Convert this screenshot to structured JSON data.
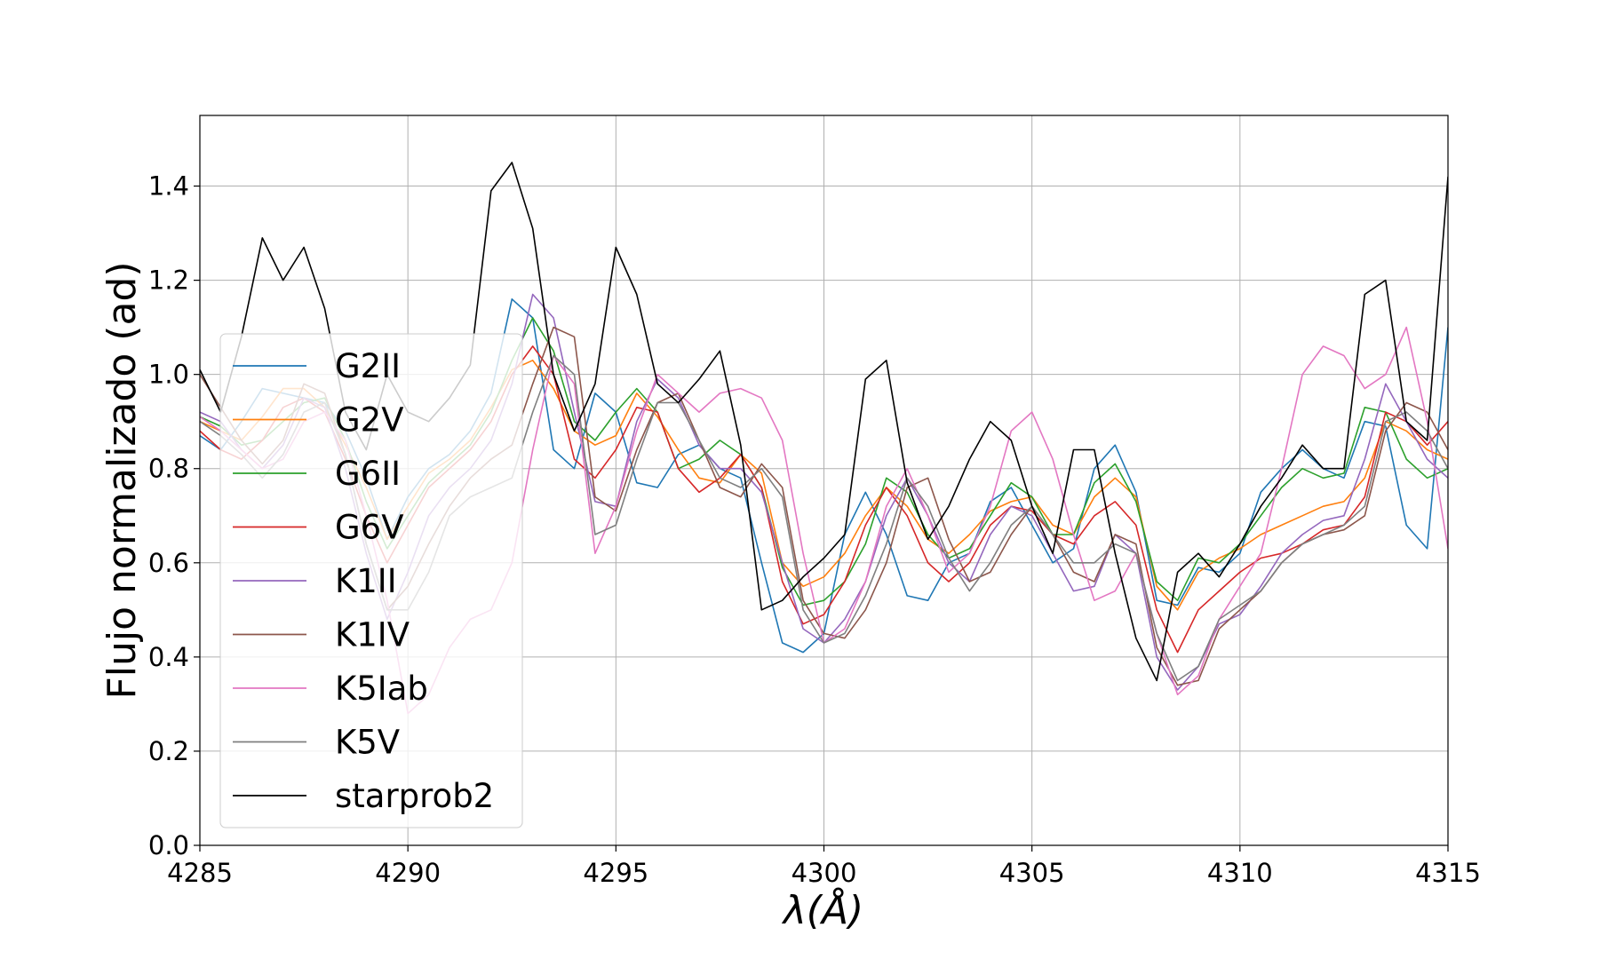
{
  "chart_data": {
    "type": "line",
    "title": "",
    "xlabel": "λ(Å)",
    "ylabel": "Flujo normalizado (ad)",
    "xlim": [
      4285,
      4315
    ],
    "ylim": [
      0.0,
      1.55
    ],
    "xticks": [
      4285,
      4290,
      4295,
      4300,
      4305,
      4310,
      4315
    ],
    "xtick_labels": [
      "4285",
      "4290",
      "4295",
      "4300",
      "4305",
      "4310",
      "4315"
    ],
    "yticks": [
      0.0,
      0.2,
      0.4,
      0.6,
      0.8,
      1.0,
      1.2,
      1.4
    ],
    "ytick_labels": [
      "0.0",
      "0.2",
      "0.4",
      "0.6",
      "0.8",
      "1.0",
      "1.2",
      "1.4"
    ],
    "grid": true,
    "legend_position": "lower-left",
    "series": [
      {
        "name": "G2II",
        "color": "#1f77b4",
        "x": [
          4285,
          4285.5,
          4286,
          4286.5,
          4287,
          4287.5,
          4288,
          4288.5,
          4289,
          4289.5,
          4290,
          4290.5,
          4291,
          4291.5,
          4292,
          4292.5,
          4293,
          4293.5,
          4294,
          4294.5,
          4295,
          4295.5,
          4296,
          4296.5,
          4297,
          4297.5,
          4298,
          4298.5,
          4299,
          4299.5,
          4300,
          4300.5,
          4301,
          4301.5,
          4302,
          4302.5,
          4303,
          4303.5,
          4304,
          4304.5,
          4305,
          4305.5,
          4306,
          4306.5,
          4307,
          4307.5,
          4308,
          4308.5,
          4309,
          4309.5,
          4310,
          4310.5,
          4311,
          4311.5,
          4312,
          4312.5,
          4313,
          4313.5,
          4314,
          4314.5,
          4315
        ],
        "y": [
          0.87,
          0.84,
          0.9,
          0.97,
          0.96,
          0.95,
          0.94,
          0.88,
          0.78,
          0.65,
          0.74,
          0.8,
          0.83,
          0.88,
          0.96,
          1.16,
          1.12,
          0.84,
          0.8,
          0.96,
          0.92,
          0.77,
          0.76,
          0.83,
          0.85,
          0.8,
          0.78,
          0.6,
          0.43,
          0.41,
          0.45,
          0.66,
          0.75,
          0.66,
          0.53,
          0.52,
          0.6,
          0.62,
          0.73,
          0.76,
          0.68,
          0.6,
          0.63,
          0.8,
          0.85,
          0.75,
          0.52,
          0.51,
          0.59,
          0.58,
          0.62,
          0.75,
          0.8,
          0.84,
          0.8,
          0.78,
          0.9,
          0.89,
          0.68,
          0.63,
          1.1
        ]
      },
      {
        "name": "G2V",
        "color": "#ff7f0e",
        "x": [
          4285,
          4285.5,
          4286,
          4286.5,
          4287,
          4287.5,
          4288,
          4288.5,
          4289,
          4289.5,
          4290,
          4290.5,
          4291,
          4291.5,
          4292,
          4292.5,
          4293,
          4293.5,
          4294,
          4294.5,
          4295,
          4295.5,
          4296,
          4296.5,
          4297,
          4297.5,
          4298,
          4298.5,
          4299,
          4299.5,
          4300,
          4300.5,
          4301,
          4301.5,
          4302,
          4302.5,
          4303,
          4303.5,
          4304,
          4304.5,
          4305,
          4305.5,
          4306,
          4306.5,
          4307,
          4307.5,
          4308,
          4308.5,
          4309,
          4309.5,
          4310,
          4310.5,
          4311,
          4311.5,
          4312,
          4312.5,
          4313,
          4313.5,
          4314,
          4314.5,
          4315
        ],
        "y": [
          0.9,
          0.88,
          0.86,
          0.91,
          0.97,
          0.97,
          0.93,
          0.85,
          0.76,
          0.65,
          0.72,
          0.79,
          0.82,
          0.86,
          0.93,
          1.01,
          1.03,
          0.97,
          0.88,
          0.85,
          0.87,
          0.96,
          0.91,
          0.84,
          0.78,
          0.77,
          0.83,
          0.79,
          0.6,
          0.55,
          0.57,
          0.62,
          0.7,
          0.76,
          0.72,
          0.65,
          0.62,
          0.66,
          0.71,
          0.73,
          0.74,
          0.68,
          0.66,
          0.74,
          0.78,
          0.74,
          0.55,
          0.5,
          0.58,
          0.61,
          0.63,
          0.66,
          0.68,
          0.7,
          0.72,
          0.73,
          0.78,
          0.9,
          0.88,
          0.84,
          0.82
        ]
      },
      {
        "name": "G6II",
        "color": "#2ca02c",
        "x": [
          4285,
          4285.5,
          4286,
          4286.5,
          4287,
          4287.5,
          4288,
          4288.5,
          4289,
          4289.5,
          4290,
          4290.5,
          4291,
          4291.5,
          4292,
          4292.5,
          4293,
          4293.5,
          4294,
          4294.5,
          4295,
          4295.5,
          4296,
          4296.5,
          4297,
          4297.5,
          4298,
          4298.5,
          4299,
          4299.5,
          4300,
          4300.5,
          4301,
          4301.5,
          4302,
          4302.5,
          4303,
          4303.5,
          4304,
          4304.5,
          4305,
          4305.5,
          4306,
          4306.5,
          4307,
          4307.5,
          4308,
          4308.5,
          4309,
          4309.5,
          4310,
          4310.5,
          4311,
          4311.5,
          4312,
          4312.5,
          4313,
          4313.5,
          4314,
          4314.5,
          4315
        ],
        "y": [
          0.91,
          0.89,
          0.85,
          0.86,
          0.9,
          0.94,
          0.95,
          0.86,
          0.73,
          0.63,
          0.7,
          0.77,
          0.81,
          0.85,
          0.92,
          1.03,
          1.12,
          1.05,
          0.9,
          0.86,
          0.92,
          0.97,
          0.92,
          0.8,
          0.82,
          0.86,
          0.83,
          0.76,
          0.59,
          0.51,
          0.52,
          0.56,
          0.64,
          0.78,
          0.75,
          0.66,
          0.61,
          0.63,
          0.7,
          0.77,
          0.74,
          0.66,
          0.66,
          0.77,
          0.81,
          0.73,
          0.56,
          0.52,
          0.61,
          0.6,
          0.64,
          0.7,
          0.76,
          0.8,
          0.78,
          0.79,
          0.93,
          0.92,
          0.82,
          0.78,
          0.8
        ]
      },
      {
        "name": "G6V",
        "color": "#d62728",
        "x": [
          4285,
          4285.5,
          4286,
          4286.5,
          4287,
          4287.5,
          4288,
          4288.5,
          4289,
          4289.5,
          4290,
          4290.5,
          4291,
          4291.5,
          4292,
          4292.5,
          4293,
          4293.5,
          4294,
          4294.5,
          4295,
          4295.5,
          4296,
          4296.5,
          4297,
          4297.5,
          4298,
          4298.5,
          4299,
          4299.5,
          4300,
          4300.5,
          4301,
          4301.5,
          4302,
          4302.5,
          4303,
          4303.5,
          4304,
          4304.5,
          4305,
          4305.5,
          4306,
          4306.5,
          4307,
          4307.5,
          4308,
          4308.5,
          4309,
          4309.5,
          4310,
          4310.5,
          4311,
          4311.5,
          4312,
          4312.5,
          4313,
          4313.5,
          4314,
          4314.5,
          4315
        ],
        "y": [
          0.88,
          0.84,
          0.82,
          0.86,
          0.93,
          0.95,
          0.92,
          0.82,
          0.7,
          0.6,
          0.68,
          0.76,
          0.8,
          0.84,
          0.9,
          1.0,
          1.06,
          1.0,
          0.82,
          0.78,
          0.84,
          0.93,
          0.92,
          0.8,
          0.75,
          0.78,
          0.83,
          0.76,
          0.56,
          0.47,
          0.49,
          0.56,
          0.68,
          0.76,
          0.7,
          0.6,
          0.56,
          0.6,
          0.68,
          0.72,
          0.71,
          0.66,
          0.64,
          0.7,
          0.73,
          0.68,
          0.5,
          0.41,
          0.5,
          0.54,
          0.58,
          0.61,
          0.62,
          0.64,
          0.67,
          0.68,
          0.74,
          0.92,
          0.9,
          0.85,
          0.9
        ]
      },
      {
        "name": "K1II",
        "color": "#9467bd",
        "x": [
          4285,
          4285.5,
          4286,
          4286.5,
          4287,
          4287.5,
          4288,
          4288.5,
          4289,
          4289.5,
          4290,
          4290.5,
          4291,
          4291.5,
          4292,
          4292.5,
          4293,
          4293.5,
          4294,
          4294.5,
          4295,
          4295.5,
          4296,
          4296.5,
          4297,
          4297.5,
          4298,
          4298.5,
          4299,
          4299.5,
          4300,
          4300.5,
          4301,
          4301.5,
          4302,
          4302.5,
          4303,
          4303.5,
          4304,
          4304.5,
          4305,
          4305.5,
          4306,
          4306.5,
          4307,
          4307.5,
          4308,
          4308.5,
          4309,
          4309.5,
          4310,
          4310.5,
          4311,
          4311.5,
          4312,
          4312.5,
          4313,
          4313.5,
          4314,
          4314.5,
          4315
        ],
        "y": [
          0.92,
          0.9,
          0.84,
          0.8,
          0.85,
          0.95,
          0.93,
          0.8,
          0.62,
          0.48,
          0.58,
          0.7,
          0.76,
          0.8,
          0.86,
          0.98,
          1.17,
          1.12,
          0.92,
          0.73,
          0.72,
          0.9,
          0.99,
          0.95,
          0.85,
          0.8,
          0.8,
          0.75,
          0.6,
          0.46,
          0.43,
          0.48,
          0.56,
          0.7,
          0.78,
          0.7,
          0.6,
          0.56,
          0.66,
          0.72,
          0.7,
          0.62,
          0.54,
          0.55,
          0.66,
          0.62,
          0.4,
          0.33,
          0.38,
          0.47,
          0.49,
          0.55,
          0.62,
          0.66,
          0.69,
          0.7,
          0.82,
          0.98,
          0.9,
          0.82,
          0.78
        ]
      },
      {
        "name": "K1IV",
        "color": "#8c564b",
        "x": [
          4285,
          4285.5,
          4286,
          4286.5,
          4287,
          4287.5,
          4288,
          4288.5,
          4289,
          4289.5,
          4290,
          4290.5,
          4291,
          4291.5,
          4292,
          4292.5,
          4293,
          4293.5,
          4294,
          4294.5,
          4295,
          4295.5,
          4296,
          4296.5,
          4297,
          4297.5,
          4298,
          4298.5,
          4299,
          4299.5,
          4300,
          4300.5,
          4301,
          4301.5,
          4302,
          4302.5,
          4303,
          4303.5,
          4304,
          4304.5,
          4305,
          4305.5,
          4306,
          4306.5,
          4307,
          4307.5,
          4308,
          4308.5,
          4309,
          4309.5,
          4310,
          4310.5,
          4311,
          4311.5,
          4312,
          4312.5,
          4313,
          4313.5,
          4314,
          4314.5,
          4315
        ],
        "y": [
          1.0,
          0.93,
          0.86,
          0.81,
          0.86,
          0.98,
          0.96,
          0.83,
          0.64,
          0.5,
          0.55,
          0.64,
          0.72,
          0.78,
          0.82,
          0.85,
          0.98,
          1.1,
          1.08,
          0.74,
          0.71,
          0.84,
          0.94,
          0.96,
          0.86,
          0.76,
          0.74,
          0.81,
          0.76,
          0.52,
          0.45,
          0.44,
          0.5,
          0.6,
          0.76,
          0.78,
          0.65,
          0.56,
          0.58,
          0.66,
          0.72,
          0.66,
          0.58,
          0.56,
          0.66,
          0.64,
          0.42,
          0.34,
          0.35,
          0.46,
          0.5,
          0.54,
          0.6,
          0.64,
          0.66,
          0.67,
          0.7,
          0.88,
          0.94,
          0.92,
          0.84
        ]
      },
      {
        "name": "K5Iab",
        "color": "#e377c2",
        "x": [
          4285,
          4285.5,
          4286,
          4286.5,
          4287,
          4287.5,
          4288,
          4288.5,
          4289,
          4289.5,
          4290,
          4290.5,
          4291,
          4291.5,
          4292,
          4292.5,
          4293,
          4293.5,
          4294,
          4294.5,
          4295,
          4295.5,
          4296,
          4296.5,
          4297,
          4297.5,
          4298,
          4298.5,
          4299,
          4299.5,
          4300,
          4300.5,
          4301,
          4301.5,
          4302,
          4302.5,
          4303,
          4303.5,
          4304,
          4304.5,
          4305,
          4305.5,
          4306,
          4306.5,
          4307,
          4307.5,
          4308,
          4308.5,
          4309,
          4309.5,
          4310,
          4310.5,
          4311,
          4311.5,
          4312,
          4312.5,
          4313,
          4313.5,
          4314,
          4314.5,
          4315
        ],
        "y": [
          0.91,
          0.88,
          0.84,
          0.8,
          0.82,
          0.9,
          0.92,
          0.86,
          0.7,
          0.52,
          0.28,
          0.32,
          0.42,
          0.48,
          0.5,
          0.6,
          0.84,
          1.04,
          0.98,
          0.62,
          0.72,
          0.88,
          1.0,
          0.96,
          0.92,
          0.96,
          0.97,
          0.95,
          0.86,
          0.62,
          0.43,
          0.46,
          0.56,
          0.72,
          0.8,
          0.7,
          0.58,
          0.62,
          0.72,
          0.88,
          0.92,
          0.82,
          0.66,
          0.52,
          0.54,
          0.62,
          0.45,
          0.32,
          0.36,
          0.48,
          0.55,
          0.62,
          0.8,
          1.0,
          1.06,
          1.04,
          0.97,
          1.0,
          1.1,
          0.9,
          0.63
        ]
      },
      {
        "name": "K5V",
        "color": "#7f7f7f",
        "x": [
          4285,
          4285.5,
          4286,
          4286.5,
          4287,
          4287.5,
          4288,
          4288.5,
          4289,
          4289.5,
          4290,
          4290.5,
          4291,
          4291.5,
          4292,
          4292.5,
          4293,
          4293.5,
          4294,
          4294.5,
          4295,
          4295.5,
          4296,
          4296.5,
          4297,
          4297.5,
          4298,
          4298.5,
          4299,
          4299.5,
          4300,
          4300.5,
          4301,
          4301.5,
          4302,
          4302.5,
          4303,
          4303.5,
          4304,
          4304.5,
          4305,
          4305.5,
          4306,
          4306.5,
          4307,
          4307.5,
          4308,
          4308.5,
          4309,
          4309.5,
          4310,
          4310.5,
          4311,
          4311.5,
          4312,
          4312.5,
          4313,
          4313.5,
          4314,
          4314.5,
          4315
        ],
        "y": [
          0.9,
          0.87,
          0.83,
          0.78,
          0.83,
          0.92,
          0.94,
          0.83,
          0.64,
          0.5,
          0.5,
          0.58,
          0.7,
          0.74,
          0.76,
          0.78,
          0.92,
          1.04,
          1.0,
          0.66,
          0.68,
          0.82,
          0.94,
          0.94,
          0.86,
          0.78,
          0.76,
          0.8,
          0.74,
          0.5,
          0.43,
          0.45,
          0.53,
          0.64,
          0.78,
          0.72,
          0.61,
          0.54,
          0.6,
          0.68,
          0.72,
          0.66,
          0.6,
          0.6,
          0.64,
          0.62,
          0.45,
          0.35,
          0.38,
          0.48,
          0.51,
          0.54,
          0.6,
          0.64,
          0.66,
          0.68,
          0.72,
          0.9,
          0.92,
          0.88,
          0.8
        ]
      },
      {
        "name": "starprob2",
        "color": "#000000",
        "x": [
          4285,
          4285.5,
          4286,
          4286.5,
          4287,
          4287.5,
          4288,
          4288.5,
          4289,
          4289.5,
          4290,
          4290.5,
          4291,
          4291.5,
          4292,
          4292.5,
          4293,
          4293.5,
          4294,
          4294.5,
          4295,
          4295.5,
          4296,
          4296.5,
          4297,
          4297.5,
          4298,
          4298.5,
          4299,
          4299.5,
          4300,
          4300.5,
          4301,
          4301.5,
          4302,
          4302.5,
          4303,
          4303.5,
          4304,
          4304.5,
          4305,
          4305.5,
          4306,
          4306.5,
          4307,
          4307.5,
          4308,
          4308.5,
          4309,
          4309.5,
          4310,
          4310.5,
          4311,
          4311.5,
          4312,
          4312.5,
          4313,
          4313.5,
          4314,
          4314.5,
          4315
        ],
        "y": [
          1.01,
          0.92,
          1.08,
          1.29,
          1.2,
          1.27,
          1.14,
          0.92,
          0.84,
          1.0,
          0.92,
          0.9,
          0.95,
          1.02,
          1.39,
          1.45,
          1.31,
          1.0,
          0.88,
          0.98,
          1.27,
          1.17,
          0.98,
          0.94,
          0.99,
          1.05,
          0.85,
          0.5,
          0.52,
          0.57,
          0.61,
          0.66,
          0.99,
          1.03,
          0.77,
          0.65,
          0.72,
          0.82,
          0.9,
          0.86,
          0.72,
          0.62,
          0.84,
          0.84,
          0.62,
          0.44,
          0.35,
          0.58,
          0.62,
          0.57,
          0.64,
          0.72,
          0.78,
          0.85,
          0.8,
          0.8,
          1.17,
          1.2,
          0.9,
          0.86,
          1.42
        ]
      }
    ]
  }
}
